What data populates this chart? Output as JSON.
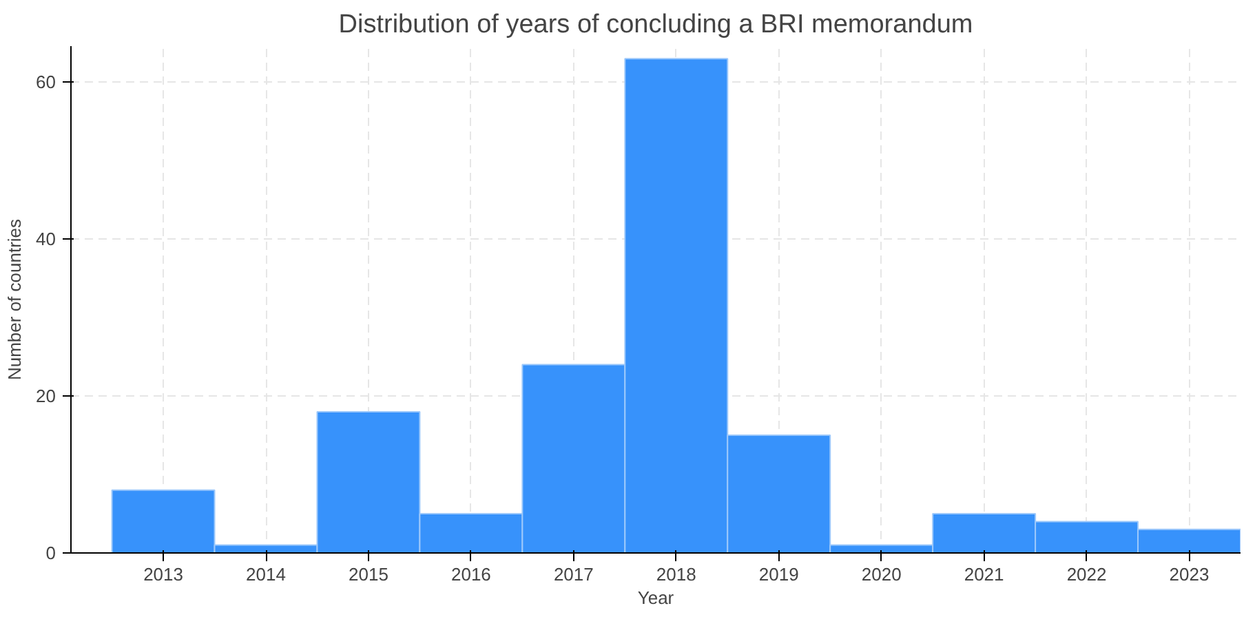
{
  "chart_data": {
    "type": "histogram",
    "title": "Distribution of years of concluding a BRI memorandum",
    "xlabel": "Year",
    "ylabel": "Number of countries",
    "bins": [
      2012.5,
      2013.5,
      2014.5,
      2015.5,
      2016.5,
      2017.5,
      2018.5,
      2019.5,
      2020.5,
      2021.5,
      2022.5,
      2023.5
    ],
    "values": [
      8,
      1,
      18,
      5,
      24,
      63,
      15,
      1,
      5,
      4,
      3
    ],
    "color": "#3792fb",
    "xlim": [
      2012.1,
      2023.5
    ],
    "ylim": [
      0,
      64.6
    ],
    "xticks": [
      2013,
      2014,
      2015,
      2016,
      2017,
      2018,
      2019,
      2020,
      2021,
      2022,
      2023
    ],
    "yticks": [
      0,
      20,
      40,
      60
    ],
    "grid": true
  }
}
